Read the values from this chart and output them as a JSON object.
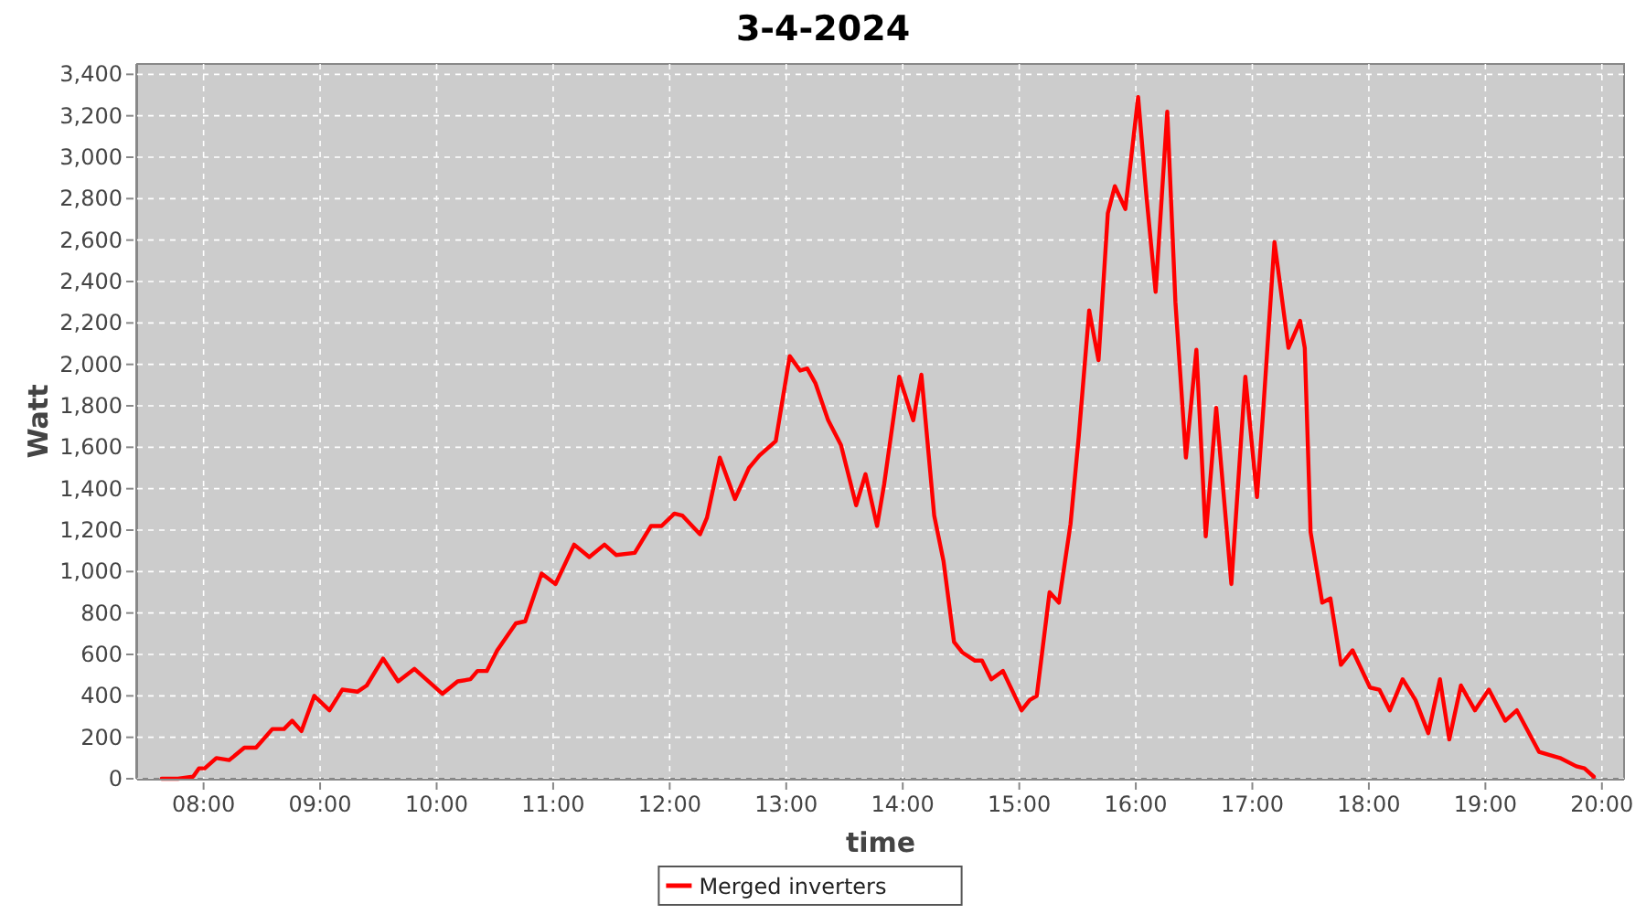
{
  "chart_data": {
    "type": "line",
    "title": "3-4-2024",
    "xlabel": "time",
    "ylabel": "Watt",
    "x": [
      7.64,
      7.78,
      7.91,
      7.96,
      8.01,
      8.11,
      8.22,
      8.35,
      8.45,
      8.59,
      8.69,
      8.76,
      8.84,
      8.95,
      9.08,
      9.19,
      9.32,
      9.4,
      9.54,
      9.67,
      9.81,
      10.05,
      10.18,
      10.29,
      10.35,
      10.43,
      10.52,
      10.68,
      10.76,
      10.9,
      11.02,
      11.18,
      11.31,
      11.44,
      11.54,
      11.7,
      11.84,
      11.93,
      12.04,
      12.11,
      12.26,
      12.32,
      12.43,
      12.56,
      12.68,
      12.77,
      12.91,
      13.03,
      13.12,
      13.18,
      13.25,
      13.36,
      13.47,
      13.6,
      13.68,
      13.78,
      13.84,
      13.97,
      14.09,
      14.16,
      14.27,
      14.35,
      14.44,
      14.51,
      14.62,
      14.68,
      14.76,
      14.86,
      15.02,
      15.09,
      15.15,
      15.26,
      15.34,
      15.44,
      15.51,
      15.6,
      15.68,
      15.76,
      15.82,
      15.91,
      16.02,
      16.09,
      16.17,
      16.27,
      16.34,
      16.43,
      16.52,
      16.6,
      16.69,
      16.82,
      16.94,
      17.04,
      17.09,
      17.19,
      17.31,
      17.41,
      17.45,
      17.5,
      17.6,
      17.67,
      17.76,
      17.86,
      18.01,
      18.09,
      18.18,
      18.29,
      18.4,
      18.51,
      18.61,
      18.69,
      18.79,
      18.91,
      19.03,
      19.17,
      19.27,
      19.46,
      19.64,
      19.78,
      19.85,
      19.93
    ],
    "series": [
      {
        "name": "Merged inverters",
        "color": "#ff0000",
        "values": [
          0,
          0,
          10,
          50,
          50,
          100,
          90,
          150,
          150,
          240,
          240,
          280,
          230,
          400,
          330,
          430,
          420,
          450,
          580,
          470,
          530,
          410,
          470,
          480,
          520,
          520,
          620,
          750,
          760,
          990,
          940,
          1130,
          1070,
          1130,
          1080,
          1090,
          1220,
          1220,
          1280,
          1270,
          1180,
          1260,
          1550,
          1350,
          1500,
          1560,
          1630,
          2040,
          1970,
          1980,
          1910,
          1730,
          1610,
          1320,
          1470,
          1220,
          1420,
          1940,
          1730,
          1950,
          1270,
          1050,
          660,
          610,
          570,
          570,
          480,
          520,
          330,
          380,
          400,
          900,
          850,
          1230,
          1650,
          2260,
          2020,
          2730,
          2860,
          2750,
          3290,
          2820,
          2350,
          3220,
          2300,
          1550,
          2070,
          1170,
          1790,
          940,
          1940,
          1360,
          1750,
          2590,
          2080,
          2210,
          2080,
          1190,
          850,
          870,
          550,
          620,
          440,
          430,
          330,
          480,
          380,
          220,
          480,
          190,
          450,
          330,
          430,
          280,
          330,
          130,
          100,
          60,
          50,
          10
        ]
      }
    ],
    "xlim": [
      7.43,
      20.19
    ],
    "xticks": [
      {
        "value": 8,
        "label": "08:00"
      },
      {
        "value": 9,
        "label": "09:00"
      },
      {
        "value": 10,
        "label": "10:00"
      },
      {
        "value": 11,
        "label": "11:00"
      },
      {
        "value": 12,
        "label": "12:00"
      },
      {
        "value": 13,
        "label": "13:00"
      },
      {
        "value": 14,
        "label": "14:00"
      },
      {
        "value": 15,
        "label": "15:00"
      },
      {
        "value": 16,
        "label": "16:00"
      },
      {
        "value": 17,
        "label": "17:00"
      },
      {
        "value": 18,
        "label": "18:00"
      },
      {
        "value": 19,
        "label": "19:00"
      },
      {
        "value": 20,
        "label": "20:00"
      }
    ],
    "ylim": [
      0,
      3450
    ],
    "yticks": [
      0,
      200,
      400,
      600,
      800,
      {
        "value": 1000,
        "label": "1,000"
      },
      {
        "value": 1200,
        "label": "1,200"
      },
      {
        "value": 1400,
        "label": "1,400"
      },
      {
        "value": 1600,
        "label": "1,600"
      },
      {
        "value": 1800,
        "label": "1,800"
      },
      {
        "value": 2000,
        "label": "2,000"
      },
      {
        "value": 2200,
        "label": "2,200"
      },
      {
        "value": 2400,
        "label": "2,400"
      },
      {
        "value": 2600,
        "label": "2,600"
      },
      {
        "value": 2800,
        "label": "2,800"
      },
      {
        "value": 3000,
        "label": "3,000"
      },
      {
        "value": 3200,
        "label": "3,200"
      },
      {
        "value": 3400,
        "label": "3,400"
      }
    ],
    "grid": true,
    "legend": "bottom",
    "marker": "none",
    "line_style": "solid"
  }
}
